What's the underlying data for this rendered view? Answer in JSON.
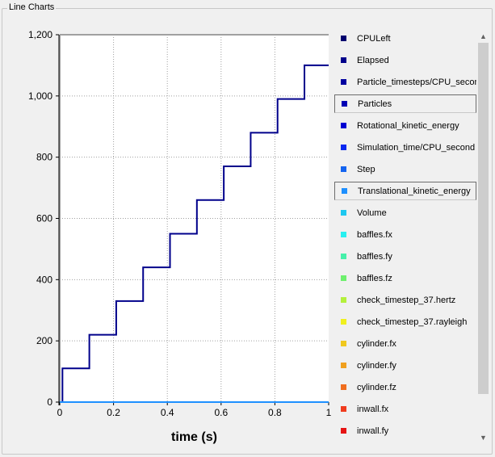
{
  "group_title": "Line Charts",
  "colors": {
    "particles_line": "#00008b",
    "translational_line": "#1e90ff",
    "grid": "#a0a0a0"
  },
  "chart_data": {
    "type": "line",
    "xlabel": "time (s)",
    "ylabel": "",
    "xlim": [
      0,
      1
    ],
    "ylim": [
      0,
      1200
    ],
    "xticks": [
      0,
      0.2,
      0.4,
      0.6,
      0.8,
      1
    ],
    "xtick_labels": [
      "0",
      "0.2",
      "0.4",
      "0.6",
      "0.8",
      "1"
    ],
    "yticks": [
      0,
      200,
      400,
      600,
      800,
      1000,
      1200
    ],
    "ytick_labels": [
      "0",
      "200",
      "400",
      "600",
      "800",
      "1,000",
      "1,200"
    ],
    "grid": true,
    "series": [
      {
        "name": "Particles",
        "color": "#00008b",
        "step": true,
        "x": [
          0,
          0.01,
          0.11,
          0.21,
          0.31,
          0.41,
          0.51,
          0.61,
          0.71,
          0.81,
          0.91,
          1.0
        ],
        "y": [
          0,
          110,
          220,
          330,
          440,
          550,
          660,
          770,
          880,
          990,
          1100,
          1100
        ]
      },
      {
        "name": "Translational_kinetic_energy",
        "color": "#1e90ff",
        "step": false,
        "x": [
          0,
          1
        ],
        "y": [
          0,
          0
        ]
      }
    ]
  },
  "legend": [
    {
      "label": "CPULeft",
      "color": "#00006e",
      "selected": false
    },
    {
      "label": "Elapsed",
      "color": "#00008b",
      "selected": false
    },
    {
      "label": "Particle_timesteps/CPU_second",
      "color": "#0000a0",
      "selected": false
    },
    {
      "label": "Particles",
      "color": "#0000b4",
      "selected": true
    },
    {
      "label": "Rotational_kinetic_energy",
      "color": "#0000d2",
      "selected": false
    },
    {
      "label": "Simulation_time/CPU_second",
      "color": "#0a28f0",
      "selected": false
    },
    {
      "label": "Step",
      "color": "#1464f0",
      "selected": false
    },
    {
      "label": "Translational_kinetic_energy",
      "color": "#1e90ff",
      "selected": true
    },
    {
      "label": "Volume",
      "color": "#1ec8f0",
      "selected": false
    },
    {
      "label": "baffles.fx",
      "color": "#28f0f0",
      "selected": false
    },
    {
      "label": "baffles.fy",
      "color": "#46f0aa",
      "selected": false
    },
    {
      "label": "baffles.fz",
      "color": "#6ef06e",
      "selected": false
    },
    {
      "label": "check_timestep_37.hertz",
      "color": "#b4f03c",
      "selected": false
    },
    {
      "label": "check_timestep_37.rayleigh",
      "color": "#f0f01e",
      "selected": false
    },
    {
      "label": "cylinder.fx",
      "color": "#f0c81e",
      "selected": false
    },
    {
      "label": "cylinder.fy",
      "color": "#f0a01e",
      "selected": false
    },
    {
      "label": "cylinder.fz",
      "color": "#f06e1e",
      "selected": false
    },
    {
      "label": "inwall.fx",
      "color": "#f03c1e",
      "selected": false
    },
    {
      "label": "inwall.fy",
      "color": "#e61414",
      "selected": false
    }
  ],
  "scrollbar": {
    "up_icon": "chevron-up-icon",
    "down_icon": "chevron-down-icon"
  }
}
